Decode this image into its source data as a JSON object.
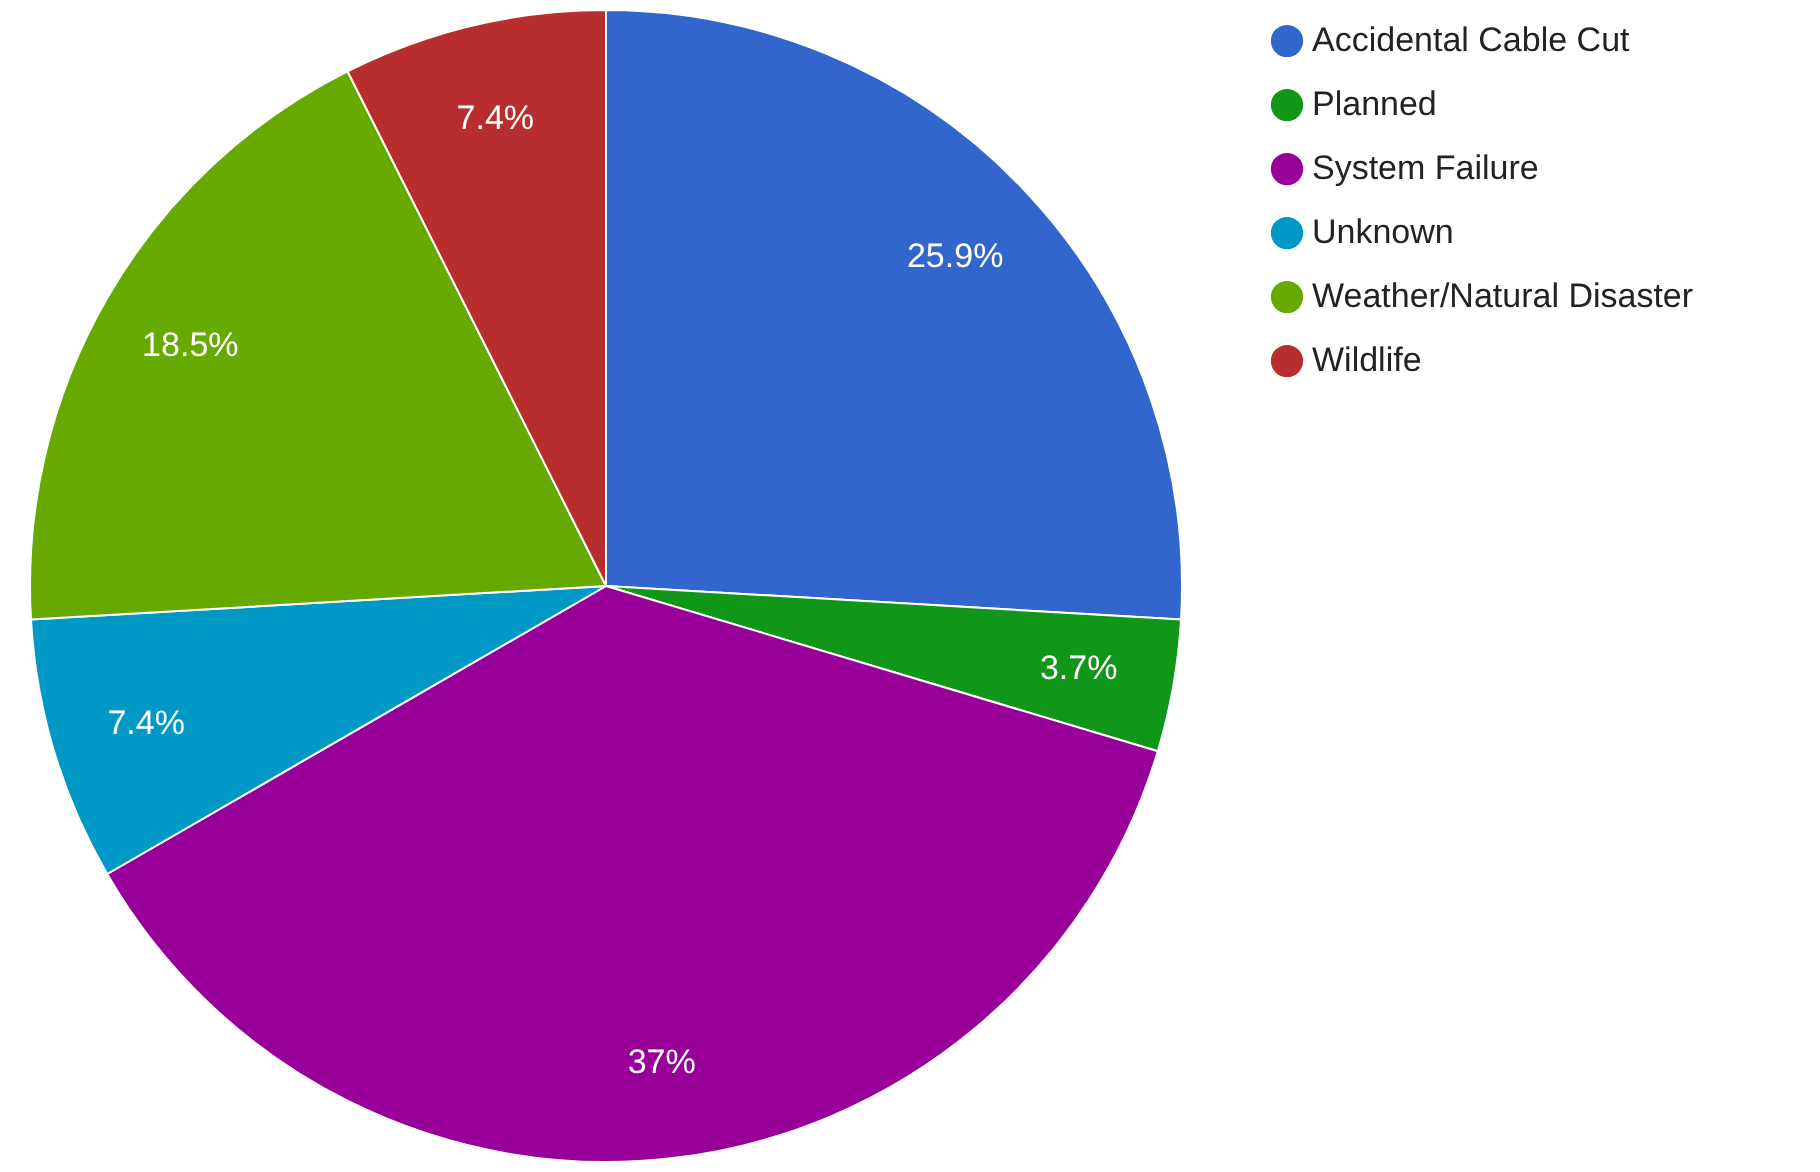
{
  "chart_data": {
    "type": "pie",
    "categories": [
      "Accidental Cable Cut",
      "Planned",
      "System Failure",
      "Unknown",
      "Weather/Natural Disaster",
      "Wildlife"
    ],
    "values": [
      25.9,
      3.7,
      37,
      7.4,
      18.5,
      7.4
    ],
    "colors": [
      "#3366cc",
      "#109618",
      "#990099",
      "#0099c6",
      "#66aa00",
      "#b82e2e"
    ],
    "value_labels": [
      "25.9%",
      "3.7%",
      "37%",
      "7.4%",
      "18.5%",
      "7.4%"
    ],
    "legend": "top right"
  }
}
